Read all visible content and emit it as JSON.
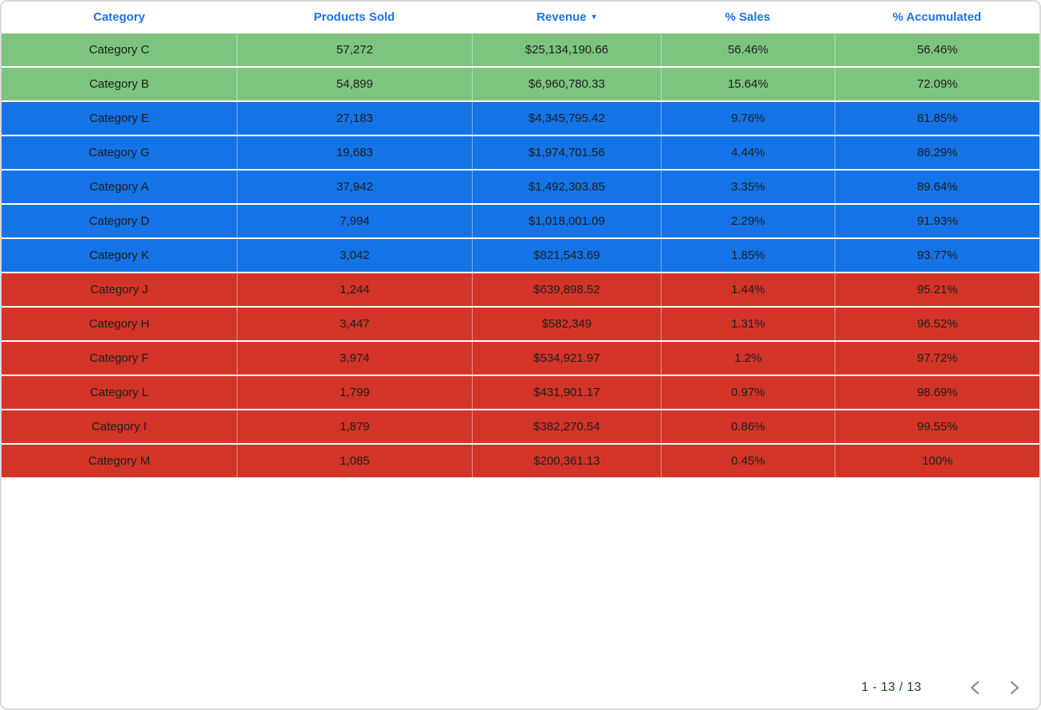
{
  "table": {
    "columns": [
      {
        "label": "Category",
        "sorted": false
      },
      {
        "label": "Products Sold",
        "sorted": false
      },
      {
        "label": "Revenue",
        "sorted": true
      },
      {
        "label": "% Sales",
        "sorted": false
      },
      {
        "label": "% Accumulated",
        "sorted": false
      }
    ],
    "sort": {
      "column": "Revenue",
      "direction": "desc",
      "icon": "▾"
    },
    "rows": [
      {
        "category": "Category C",
        "products_sold": "57,272",
        "revenue": "$25,134,190.66",
        "pct_sales": "56.46%",
        "pct_accumulated": "56.46%",
        "band": "green"
      },
      {
        "category": "Category B",
        "products_sold": "54,899",
        "revenue": "$6,960,780.33",
        "pct_sales": "15.64%",
        "pct_accumulated": "72.09%",
        "band": "green"
      },
      {
        "category": "Category E",
        "products_sold": "27,183",
        "revenue": "$4,345,795.42",
        "pct_sales": "9.76%",
        "pct_accumulated": "81.85%",
        "band": "blue"
      },
      {
        "category": "Category G",
        "products_sold": "19,683",
        "revenue": "$1,974,701.56",
        "pct_sales": "4.44%",
        "pct_accumulated": "86.29%",
        "band": "blue"
      },
      {
        "category": "Category A",
        "products_sold": "37,942",
        "revenue": "$1,492,303.85",
        "pct_sales": "3.35%",
        "pct_accumulated": "89.64%",
        "band": "blue"
      },
      {
        "category": "Category D",
        "products_sold": "7,994",
        "revenue": "$1,018,001.09",
        "pct_sales": "2.29%",
        "pct_accumulated": "91.93%",
        "band": "blue"
      },
      {
        "category": "Category K",
        "products_sold": "3,042",
        "revenue": "$821,543.69",
        "pct_sales": "1.85%",
        "pct_accumulated": "93.77%",
        "band": "blue"
      },
      {
        "category": "Category J",
        "products_sold": "1,244",
        "revenue": "$639,898.52",
        "pct_sales": "1.44%",
        "pct_accumulated": "95.21%",
        "band": "red"
      },
      {
        "category": "Category H",
        "products_sold": "3,447",
        "revenue": "$582,349",
        "pct_sales": "1.31%",
        "pct_accumulated": "96.52%",
        "band": "red"
      },
      {
        "category": "Category F",
        "products_sold": "3,974",
        "revenue": "$534,921.97",
        "pct_sales": "1.2%",
        "pct_accumulated": "97.72%",
        "band": "red"
      },
      {
        "category": "Category L",
        "products_sold": "1,799",
        "revenue": "$431,901.17",
        "pct_sales": "0.97%",
        "pct_accumulated": "98.69%",
        "band": "red"
      },
      {
        "category": "Category I",
        "products_sold": "1,879",
        "revenue": "$382,270.54",
        "pct_sales": "0.86%",
        "pct_accumulated": "99.55%",
        "band": "red"
      },
      {
        "category": "Category M",
        "products_sold": "1,085",
        "revenue": "$200,361.13",
        "pct_sales": "0.45%",
        "pct_accumulated": "100%",
        "band": "red"
      }
    ]
  },
  "chart_data": {
    "type": "table",
    "title": "",
    "columns": [
      "Category",
      "Products Sold",
      "Revenue",
      "% Sales",
      "% Accumulated"
    ],
    "rows": [
      [
        "Category C",
        57272,
        25134190.66,
        56.46,
        56.46
      ],
      [
        "Category B",
        54899,
        6960780.33,
        15.64,
        72.09
      ],
      [
        "Category E",
        27183,
        4345795.42,
        9.76,
        81.85
      ],
      [
        "Category G",
        19683,
        1974701.56,
        4.44,
        86.29
      ],
      [
        "Category A",
        37942,
        1492303.85,
        3.35,
        89.64
      ],
      [
        "Category D",
        7994,
        1018001.09,
        2.29,
        91.93
      ],
      [
        "Category K",
        3042,
        821543.69,
        1.85,
        93.77
      ],
      [
        "Category J",
        1244,
        639898.52,
        1.44,
        95.21
      ],
      [
        "Category H",
        3447,
        582349,
        1.31,
        96.52
      ],
      [
        "Category F",
        3974,
        534921.97,
        1.2,
        97.72
      ],
      [
        "Category L",
        1799,
        431901.17,
        0.97,
        98.69
      ],
      [
        "Category I",
        1879,
        382270.54,
        0.86,
        99.55
      ],
      [
        "Category M",
        1085,
        200361.13,
        0.45,
        100
      ]
    ],
    "sorted_by": "Revenue desc",
    "row_band_colors": {
      "green": "rows 1-2",
      "blue": "rows 3-7",
      "red": "rows 8-13"
    }
  },
  "pagination": {
    "label": "1 - 13 / 13",
    "prev_icon": "chevron-left",
    "next_icon": "chevron-right"
  },
  "colors": {
    "band_green": "#7dc47e",
    "band_blue": "#1473e6",
    "band_red": "#d23428",
    "header_text": "#1a73e8",
    "cell_text": "#1e1e1e",
    "pagination_text": "#1e4620",
    "chevron": "#8a8f94",
    "card_border": "#d9d9d9",
    "row_separator": "#ffffff"
  }
}
